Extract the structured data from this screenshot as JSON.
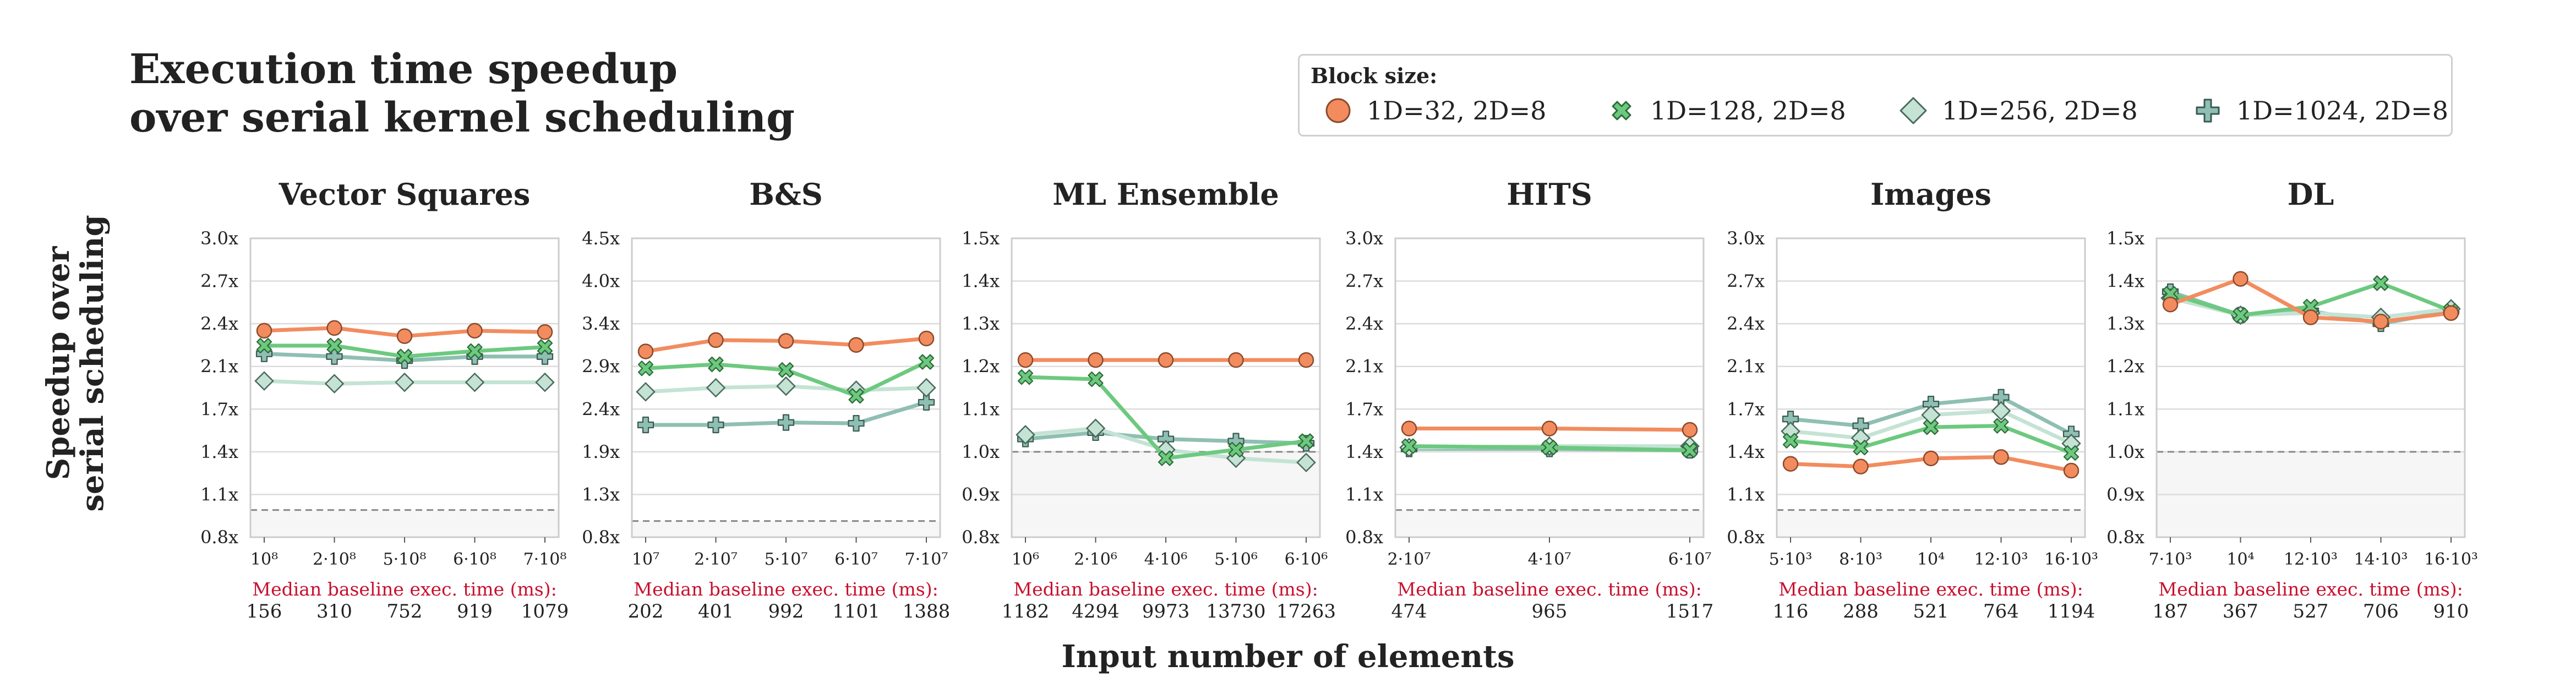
{
  "title_line1": "Execution time speedup",
  "title_line2": "over serial kernel scheduling",
  "legend": {
    "title": "Block size:",
    "items": [
      {
        "label": "1D=32, 2D=8",
        "marker": "circle",
        "color": "#f28c5e"
      },
      {
        "label": "1D=128, 2D=8",
        "marker": "x",
        "color": "#6cc97e"
      },
      {
        "label": "1D=256, 2D=8",
        "marker": "diamond",
        "color": "#c4e3d5"
      },
      {
        "label": "1D=1024, 2D=8",
        "marker": "plus",
        "color": "#8fbfb2"
      }
    ]
  },
  "ylabel_line1": "Speedup over",
  "ylabel_line2": "serial scheduling",
  "xlabel": "Input number of elements",
  "baseline_label": "Median baseline exec. time (ms):",
  "chart_data": [
    {
      "type": "line",
      "title": "Vector Squares",
      "x_ticks": [
        "10⁸",
        "2·10⁸",
        "5·10⁸",
        "6·10⁸",
        "7·10⁸"
      ],
      "y_ticks": [
        "0.8x",
        "1.1x",
        "1.4x",
        "1.7x",
        "2.1x",
        "2.4x",
        "2.7x",
        "3.0x"
      ],
      "ylim": [
        0.8,
        3.0
      ],
      "baseline_ms": [
        "156",
        "310",
        "752",
        "919",
        "1079"
      ],
      "series": [
        {
          "name": "1D=32, 2D=8",
          "values": [
            2.32,
            2.34,
            2.28,
            2.32,
            2.31
          ]
        },
        {
          "name": "1D=128, 2D=8",
          "values": [
            2.21,
            2.21,
            2.13,
            2.17,
            2.2
          ]
        },
        {
          "name": "1D=256, 2D=8",
          "values": [
            1.95,
            1.93,
            1.94,
            1.94,
            1.94
          ]
        },
        {
          "name": "1D=1024, 2D=8",
          "values": [
            2.15,
            2.13,
            2.1,
            2.13,
            2.13
          ]
        }
      ]
    },
    {
      "type": "line",
      "title": "B&S",
      "x_ticks": [
        "10⁷",
        "2·10⁷",
        "5·10⁷",
        "6·10⁷",
        "7·10⁷"
      ],
      "y_ticks": [
        "0.8x",
        "1.3x",
        "1.9x",
        "2.4x",
        "2.9x",
        "3.4x",
        "4.0x",
        "4.5x"
      ],
      "ylim": [
        0.8,
        4.5
      ],
      "baseline_ms": [
        "202",
        "401",
        "992",
        "1101",
        "1388"
      ],
      "series": [
        {
          "name": "1D=32, 2D=8",
          "values": [
            3.1,
            3.24,
            3.23,
            3.18,
            3.26
          ]
        },
        {
          "name": "1D=128, 2D=8",
          "values": [
            2.89,
            2.94,
            2.87,
            2.55,
            2.97
          ]
        },
        {
          "name": "1D=256, 2D=8",
          "values": [
            2.6,
            2.65,
            2.67,
            2.62,
            2.65
          ]
        },
        {
          "name": "1D=1024, 2D=8",
          "values": [
            2.19,
            2.19,
            2.22,
            2.21,
            2.47
          ]
        }
      ]
    },
    {
      "type": "line",
      "title": "ML Ensemble",
      "x_ticks": [
        "10⁶",
        "2·10⁶",
        "4·10⁶",
        "5·10⁶",
        "6·10⁶"
      ],
      "y_ticks": [
        "0.8x",
        "0.9x",
        "1.0x",
        "1.1x",
        "1.2x",
        "1.3x",
        "1.4x",
        "1.5x"
      ],
      "ylim": [
        0.8,
        1.5
      ],
      "baseline_ms": [
        "1182",
        "4294",
        "9973",
        "13730",
        "17263"
      ],
      "series": [
        {
          "name": "1D=32, 2D=8",
          "values": [
            1.215,
            1.215,
            1.215,
            1.215,
            1.215
          ]
        },
        {
          "name": "1D=128, 2D=8",
          "values": [
            1.175,
            1.17,
            0.985,
            1.005,
            1.025
          ]
        },
        {
          "name": "1D=256, 2D=8",
          "values": [
            1.04,
            1.055,
            1.005,
            0.985,
            0.975
          ]
        },
        {
          "name": "1D=1024, 2D=8",
          "values": [
            1.03,
            1.045,
            1.03,
            1.025,
            1.02
          ]
        }
      ]
    },
    {
      "type": "line",
      "title": "HITS",
      "x_ticks": [
        "2·10⁷",
        "4·10⁷",
        "6·10⁷"
      ],
      "y_ticks": [
        "0.8x",
        "1.1x",
        "1.4x",
        "1.7x",
        "2.1x",
        "2.4x",
        "2.7x",
        "3.0x"
      ],
      "ylim": [
        0.8,
        3.0
      ],
      "baseline_ms": [
        "474",
        "965",
        "1517"
      ],
      "series": [
        {
          "name": "1D=32, 2D=8",
          "values": [
            1.6,
            1.6,
            1.59
          ]
        },
        {
          "name": "1D=128, 2D=8",
          "values": [
            1.47,
            1.46,
            1.44
          ]
        },
        {
          "name": "1D=256, 2D=8",
          "values": [
            1.46,
            1.47,
            1.47
          ]
        },
        {
          "name": "1D=1024, 2D=8",
          "values": [
            1.45,
            1.45,
            1.44
          ]
        }
      ]
    },
    {
      "type": "line",
      "title": "Images",
      "x_ticks": [
        "5·10³",
        "8·10³",
        "10⁴",
        "12·10³",
        "16·10³"
      ],
      "y_ticks": [
        "0.8x",
        "1.1x",
        "1.4x",
        "1.7x",
        "2.1x",
        "2.4x",
        "2.7x",
        "3.0x"
      ],
      "ylim": [
        0.8,
        3.0
      ],
      "baseline_ms": [
        "116",
        "288",
        "521",
        "764",
        "1194"
      ],
      "series": [
        {
          "name": "1D=32, 2D=8",
          "values": [
            1.34,
            1.32,
            1.38,
            1.39,
            1.29
          ]
        },
        {
          "name": "1D=128, 2D=8",
          "values": [
            1.51,
            1.46,
            1.61,
            1.62,
            1.42
          ]
        },
        {
          "name": "1D=256, 2D=8",
          "values": [
            1.58,
            1.53,
            1.7,
            1.73,
            1.49
          ]
        },
        {
          "name": "1D=1024, 2D=8",
          "values": [
            1.67,
            1.62,
            1.78,
            1.83,
            1.56
          ]
        }
      ]
    },
    {
      "type": "line",
      "title": "DL",
      "x_ticks": [
        "7·10³",
        "10⁴",
        "12·10³",
        "14·10³",
        "16·10³"
      ],
      "y_ticks": [
        "0.8x",
        "0.9x",
        "1.0x",
        "1.1x",
        "1.2x",
        "1.3x",
        "1.4x",
        "1.5x"
      ],
      "ylim": [
        0.8,
        1.5
      ],
      "baseline_ms": [
        "187",
        "367",
        "527",
        "706",
        "910"
      ],
      "series": [
        {
          "name": "1D=32, 2D=8",
          "values": [
            1.345,
            1.405,
            1.315,
            1.305,
            1.325
          ]
        },
        {
          "name": "1D=128, 2D=8",
          "values": [
            1.37,
            1.32,
            1.34,
            1.395,
            1.33
          ]
        },
        {
          "name": "1D=256, 2D=8",
          "values": [
            1.36,
            1.32,
            1.325,
            1.315,
            1.335
          ]
        },
        {
          "name": "1D=1024, 2D=8",
          "values": [
            1.375,
            1.32,
            1.33,
            1.3,
            1.33
          ]
        }
      ]
    }
  ]
}
